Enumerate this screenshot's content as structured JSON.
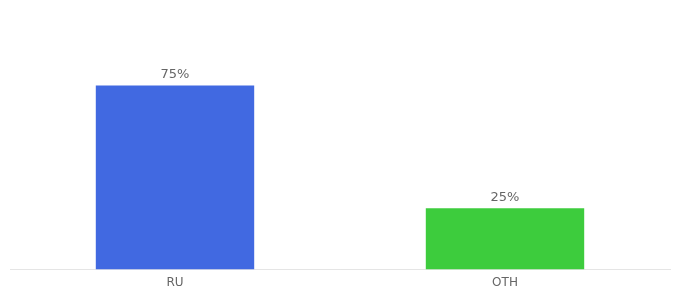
{
  "chart_data": {
    "type": "bar",
    "categories": [
      "RU",
      "OTH"
    ],
    "values": [
      75,
      25
    ],
    "value_labels": [
      "75%",
      "25%"
    ],
    "colors": [
      "#4169e1",
      "#3dcc3d"
    ],
    "data_labels": true,
    "ylim": [
      0,
      100
    ],
    "tick_labels": "x",
    "grid": false
  }
}
